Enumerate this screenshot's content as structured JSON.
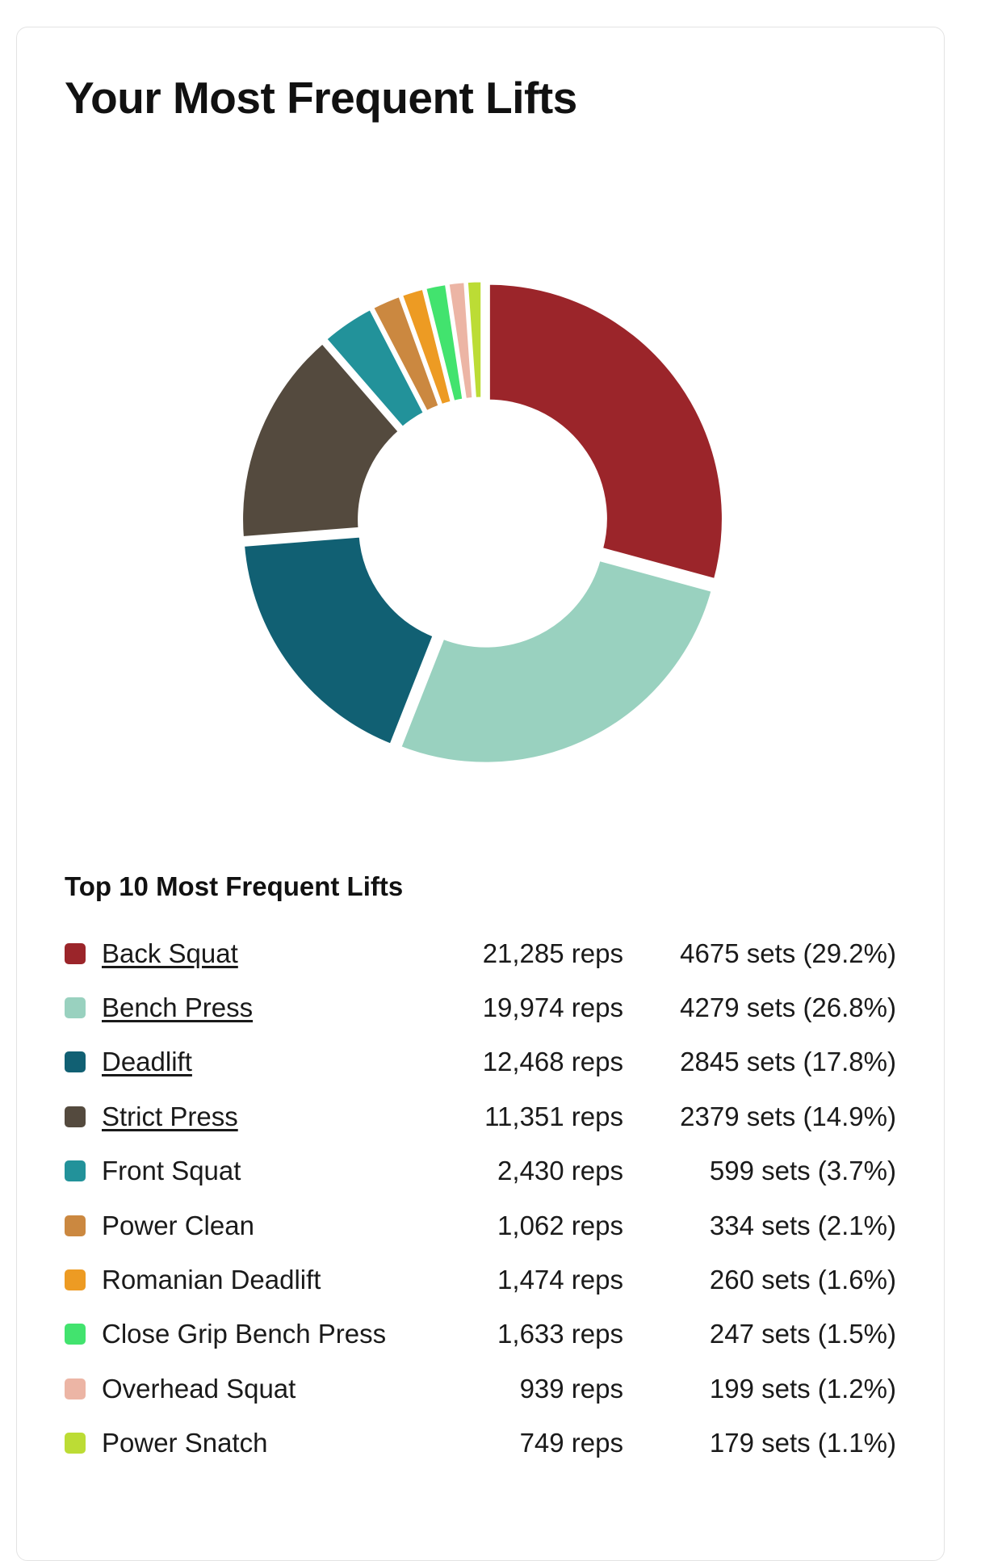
{
  "card": {
    "title": "Your Most Frequent Lifts"
  },
  "legend": {
    "title": "Top 10 Most Frequent Lifts"
  },
  "chart_data": {
    "type": "pie",
    "donut": true,
    "categories": [
      "Back Squat",
      "Bench Press",
      "Deadlift",
      "Strict Press",
      "Front Squat",
      "Power Clean",
      "Romanian Deadlift",
      "Close Grip Bench Press",
      "Overhead Squat",
      "Power Snatch"
    ],
    "values": [
      4675,
      4279,
      2845,
      2379,
      599,
      334,
      260,
      247,
      199,
      179
    ],
    "colors": [
      "#9b252a",
      "#99d1bf",
      "#116073",
      "#544a3e",
      "#22929a",
      "#cb8840",
      "#ed9b23",
      "#42e36e",
      "#ecb5a5",
      "#bcdc35"
    ],
    "legend_position": "bottom",
    "rows": [
      {
        "name": "Back Squat",
        "reps": "21,285 reps",
        "sets": "4675 sets (29.2%)",
        "link": true
      },
      {
        "name": "Bench Press",
        "reps": "19,974 reps",
        "sets": "4279 sets (26.8%)",
        "link": true
      },
      {
        "name": "Deadlift",
        "reps": "12,468 reps",
        "sets": "2845 sets (17.8%)",
        "link": true
      },
      {
        "name": "Strict Press",
        "reps": "11,351 reps",
        "sets": "2379 sets (14.9%)",
        "link": true
      },
      {
        "name": "Front Squat",
        "reps": "2,430 reps",
        "sets": "599 sets (3.7%)",
        "link": false
      },
      {
        "name": "Power Clean",
        "reps": "1,062 reps",
        "sets": "334 sets (2.1%)",
        "link": false
      },
      {
        "name": "Romanian Deadlift",
        "reps": "1,474 reps",
        "sets": "260 sets (1.6%)",
        "link": false
      },
      {
        "name": "Close Grip Bench Press",
        "reps": "1,633 reps",
        "sets": "247 sets (1.5%)",
        "link": false
      },
      {
        "name": "Overhead Squat",
        "reps": "939 reps",
        "sets": "199 sets (1.2%)",
        "link": false
      },
      {
        "name": "Power Snatch",
        "reps": "749 reps",
        "sets": "179 sets (1.1%)",
        "link": false
      }
    ]
  }
}
